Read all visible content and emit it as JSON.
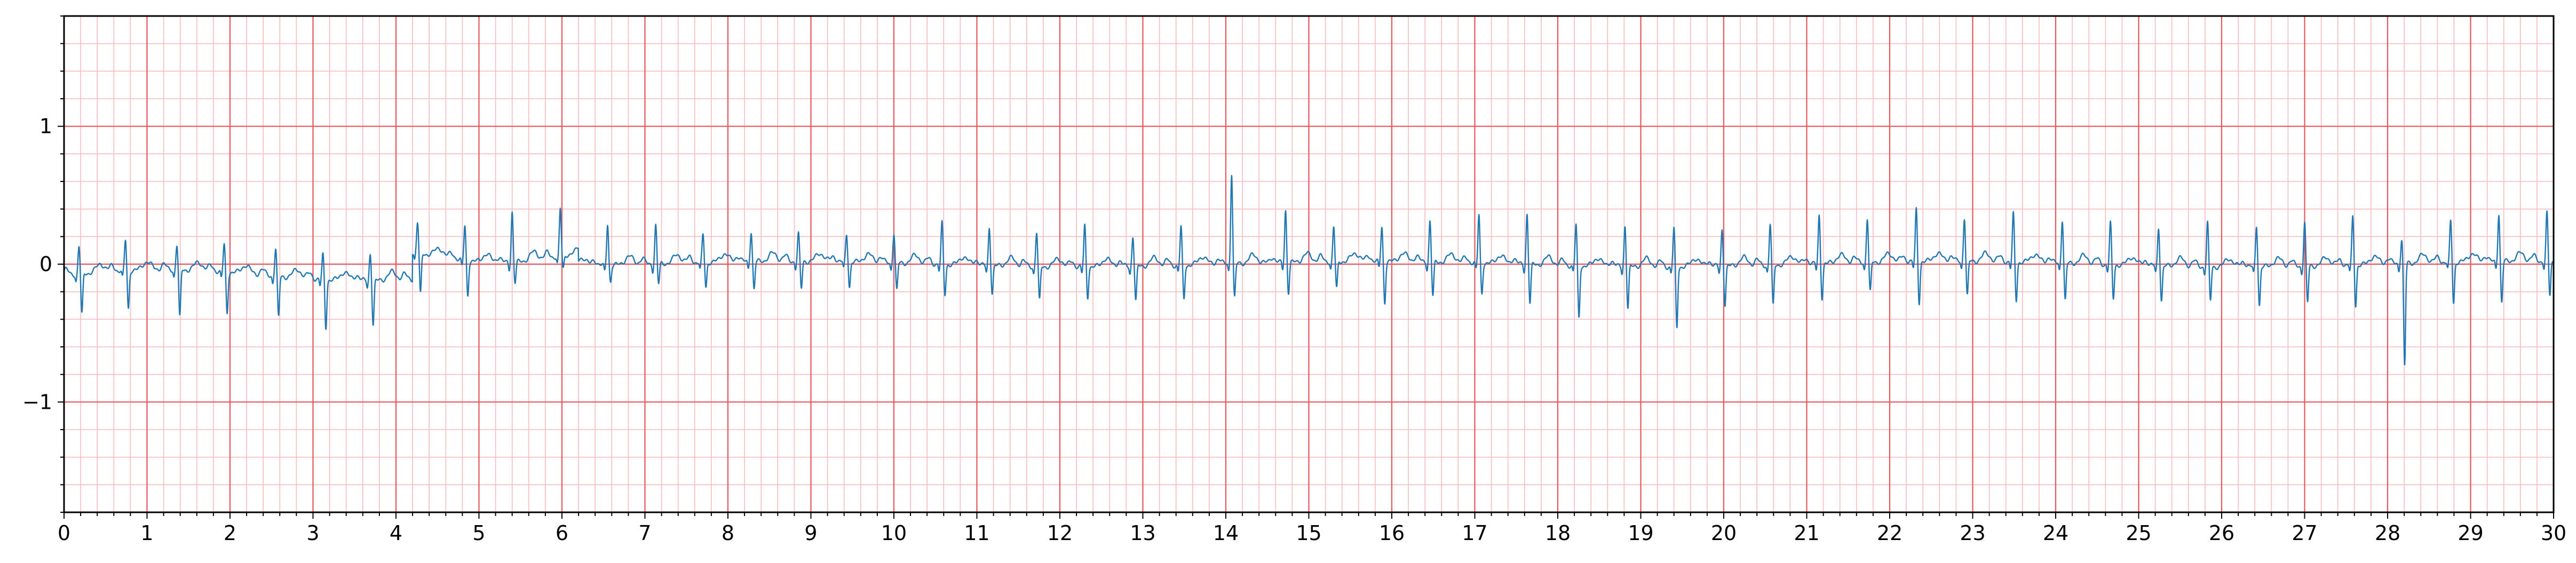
{
  "chart_data": {
    "type": "line",
    "title": "",
    "xlabel": "",
    "ylabel": "",
    "xlim": [
      0,
      30
    ],
    "ylim": [
      -1.8,
      1.8
    ],
    "x_ticks": [
      "0",
      "1",
      "2",
      "3",
      "4",
      "5",
      "6",
      "7",
      "8",
      "9",
      "10",
      "11",
      "12",
      "13",
      "14",
      "15",
      "16",
      "17",
      "18",
      "19",
      "20",
      "21",
      "22",
      "23",
      "24",
      "25",
      "26",
      "27",
      "28",
      "29",
      "30"
    ],
    "y_ticks": [
      {
        "value": 1,
        "label": "1"
      },
      {
        "value": 0,
        "label": "0"
      },
      {
        "value": -1,
        "label": "−1"
      }
    ],
    "grid": {
      "major_step_x": 1,
      "minor_step_x": 0.2,
      "major_step_y": 1,
      "minor_step_y": 0.2
    },
    "colors": {
      "line": "#1f77b4",
      "major_grid": "#e8555a",
      "minor_grid": "#f8bcbf",
      "axes": "#000000"
    },
    "series": [
      {
        "beat_times": [
          0.18,
          0.74,
          1.36,
          1.93,
          2.55,
          3.12,
          3.69,
          4.26,
          4.83,
          5.4,
          5.98,
          6.55,
          7.13,
          7.7,
          8.28,
          8.85,
          9.43,
          10.0,
          10.58,
          11.15,
          11.72,
          12.3,
          12.88,
          13.46,
          14.07,
          14.72,
          15.3,
          15.88,
          16.46,
          17.05,
          17.63,
          18.22,
          18.81,
          19.4,
          19.98,
          20.56,
          21.15,
          21.73,
          22.32,
          22.9,
          23.49,
          24.08,
          24.66,
          25.24,
          25.83,
          26.42,
          27.0,
          27.58,
          28.17,
          28.76,
          29.34,
          29.92
        ],
        "r_amplitudes": [
          0.2,
          0.22,
          0.18,
          0.2,
          0.2,
          0.18,
          0.2,
          0.22,
          0.25,
          0.37,
          0.34,
          0.3,
          0.28,
          0.2,
          0.22,
          0.2,
          0.2,
          0.22,
          0.3,
          0.28,
          0.25,
          0.3,
          0.22,
          0.28,
          0.66,
          0.38,
          0.25,
          0.25,
          0.3,
          0.35,
          0.37,
          0.3,
          0.3,
          0.28,
          0.27,
          0.3,
          0.35,
          0.32,
          0.38,
          0.32,
          0.35,
          0.32,
          0.3,
          0.28,
          0.32,
          0.3,
          0.32,
          0.35,
          0.18,
          0.3,
          0.35,
          0.35
        ],
        "s_amplitudes": [
          -0.3,
          -0.28,
          -0.35,
          -0.3,
          -0.3,
          -0.35,
          -0.32,
          -0.3,
          -0.25,
          -0.15,
          -0.1,
          -0.12,
          -0.15,
          -0.18,
          -0.2,
          -0.2,
          -0.18,
          -0.2,
          -0.22,
          -0.2,
          -0.25,
          -0.22,
          -0.25,
          -0.25,
          -0.25,
          -0.22,
          -0.2,
          -0.3,
          -0.25,
          -0.22,
          -0.28,
          -0.38,
          -0.3,
          -0.45,
          -0.28,
          -0.3,
          -0.25,
          -0.22,
          -0.3,
          -0.25,
          -0.28,
          -0.27,
          -0.25,
          -0.25,
          -0.25,
          -0.28,
          -0.27,
          -0.3,
          -0.75,
          -0.3,
          -0.3,
          -0.25
        ]
      }
    ]
  }
}
